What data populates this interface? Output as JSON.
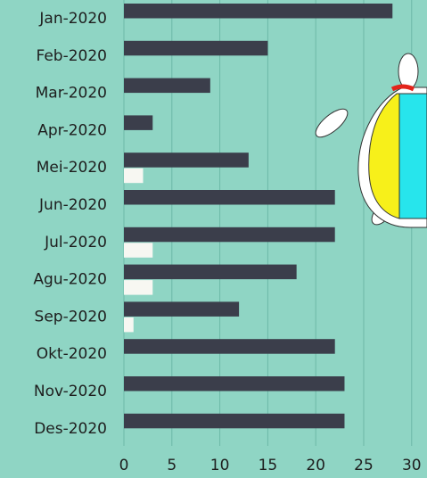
{
  "chart_data": {
    "type": "bar",
    "orientation": "horizontal",
    "categories": [
      "Jan-2020",
      "Feb-2020",
      "Mar-2020",
      "Apr-2020",
      "Mei-2020",
      "Jun-2020",
      "Jul-2020",
      "Agu-2020",
      "Sep-2020",
      "Okt-2020",
      "Nov-2020",
      "Des-2020"
    ],
    "series": [
      {
        "color": "#3b3e4b",
        "values": [
          28,
          15,
          9,
          3,
          13,
          22,
          22,
          18,
          12,
          22,
          23,
          23
        ]
      },
      {
        "color": "#f7f7f2",
        "values": [
          0,
          0,
          0,
          0,
          2,
          0,
          3,
          3,
          1,
          0,
          0,
          0
        ]
      }
    ],
    "xlim": [
      0,
      31.6
    ],
    "xticks": [
      0,
      5,
      10,
      15,
      20,
      25,
      30
    ],
    "grid": true
  }
}
